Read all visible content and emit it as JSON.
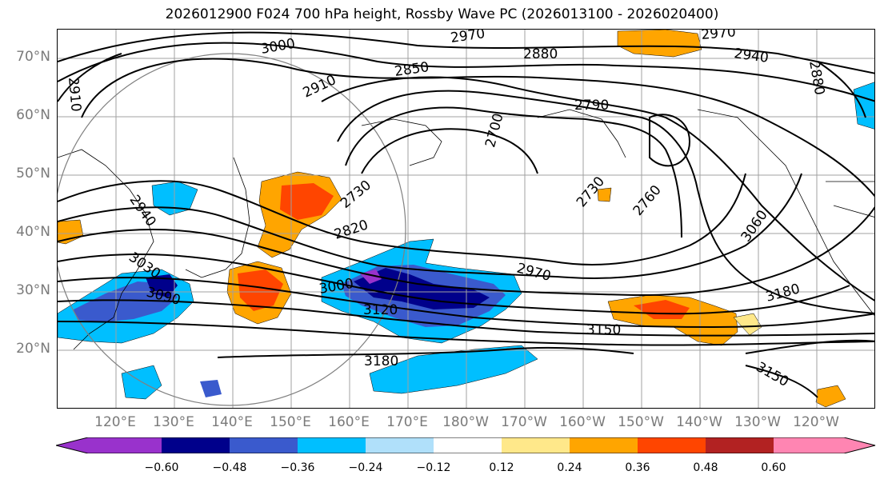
{
  "title": "2026012900 F024 700 hPa height, Rossby Wave PC (2026013100 - 2026020400)",
  "lat_labels": [
    "70°N",
    "60°N",
    "50°N",
    "40°N",
    "30°N",
    "20°N"
  ],
  "lon_labels": [
    "120°E",
    "130°E",
    "140°E",
    "150°E",
    "160°E",
    "170°E",
    "180°W",
    "170°W",
    "160°W",
    "150°W",
    "140°W",
    "130°W",
    "120°W"
  ],
  "contour_labels": [
    "3000",
    "2970",
    "2880",
    "2970",
    "2940",
    "2910",
    "2910",
    "2850",
    "2790",
    "2880",
    "2700",
    "2730",
    "2760",
    "2730",
    "2940",
    "2820",
    "3030",
    "3000",
    "3090",
    "3120",
    "2970",
    "3060",
    "3180",
    "3150",
    "3180",
    "3150"
  ],
  "colorbar": {
    "tick_labels": [
      "−0.60",
      "−0.48",
      "−0.36",
      "−0.24",
      "−0.12",
      "0.12",
      "0.24",
      "0.36",
      "0.48",
      "0.60"
    ],
    "colors": [
      "#9932cc",
      "#00008b",
      "#3a5acd",
      "#00bfff",
      "#b0e0fa",
      "#ffffff",
      "#ffe88a",
      "#ffa500",
      "#ff4500",
      "#b22222",
      "#ff85b2"
    ]
  },
  "fill_colors": {
    "deep_purple": "#9932cc",
    "navy": "#00008b",
    "blue": "#3a5acd",
    "cyan": "#00bfff",
    "orange": "#ffa500",
    "red": "#ff4500",
    "yellow": "#ffe88a"
  }
}
